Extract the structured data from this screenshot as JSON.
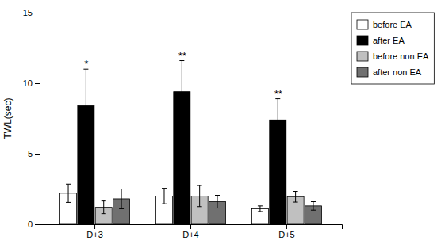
{
  "chart_data": {
    "type": "bar",
    "categories": [
      "D+3",
      "D+4",
      "D+5"
    ],
    "series": [
      {
        "name": "before EA",
        "color": "#ffffff",
        "values": [
          2.2,
          2.0,
          1.1
        ],
        "errors": [
          0.65,
          0.55,
          0.2
        ]
      },
      {
        "name": "after EA",
        "color": "#000000",
        "values": [
          8.4,
          9.4,
          7.4
        ],
        "errors": [
          2.6,
          2.2,
          1.5
        ]
      },
      {
        "name": "before non EA",
        "color": "#c0c0c0",
        "values": [
          1.2,
          2.0,
          1.95
        ],
        "errors": [
          0.45,
          0.75,
          0.38
        ]
      },
      {
        "name": "after non EA",
        "color": "#707070",
        "values": [
          1.8,
          1.6,
          1.3
        ],
        "errors": [
          0.7,
          0.45,
          0.3
        ]
      }
    ],
    "annotations": [
      {
        "text": "*",
        "category": "D+3",
        "series": "after EA"
      },
      {
        "text": "**",
        "category": "D+4",
        "series": "after EA"
      },
      {
        "text": "**",
        "category": "D+5",
        "series": "after EA"
      }
    ],
    "ylabel": "TWL(sec)",
    "ylim": [
      0,
      15
    ],
    "yticks": [
      0,
      5,
      10,
      15
    ],
    "grid": false,
    "legend": "right"
  }
}
